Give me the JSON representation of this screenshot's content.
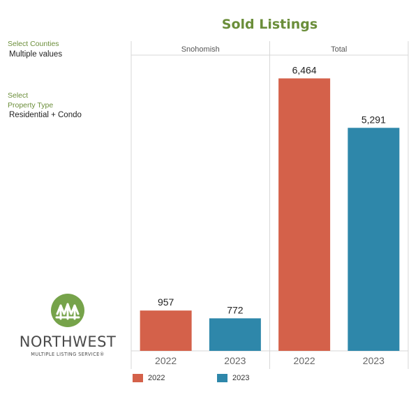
{
  "filters": {
    "counties_label": "Select Counties",
    "counties_value": "Multiple values",
    "property_label_line1": "Select",
    "property_label_line2": "Property Type",
    "property_value": "Residential + Condo"
  },
  "logo": {
    "word": "NORTHWEST",
    "sub": "MULTIPLE LISTING SERVICE®"
  },
  "colors": {
    "y2022": "#d4614a",
    "y2023": "#2e87aa"
  },
  "chart_data": {
    "type": "bar",
    "title": "Sold Listings",
    "panels": [
      "Snohomish",
      "Total"
    ],
    "categories": [
      "2022",
      "2023"
    ],
    "values": [
      [
        957,
        772
      ],
      [
        6464,
        5291
      ]
    ],
    "value_labels": [
      [
        "957",
        "772"
      ],
      [
        "6,464",
        "5,291"
      ]
    ],
    "ylim": [
      0,
      7000
    ],
    "legend": [
      "2022",
      "2023"
    ],
    "legend_position": "bottom"
  }
}
